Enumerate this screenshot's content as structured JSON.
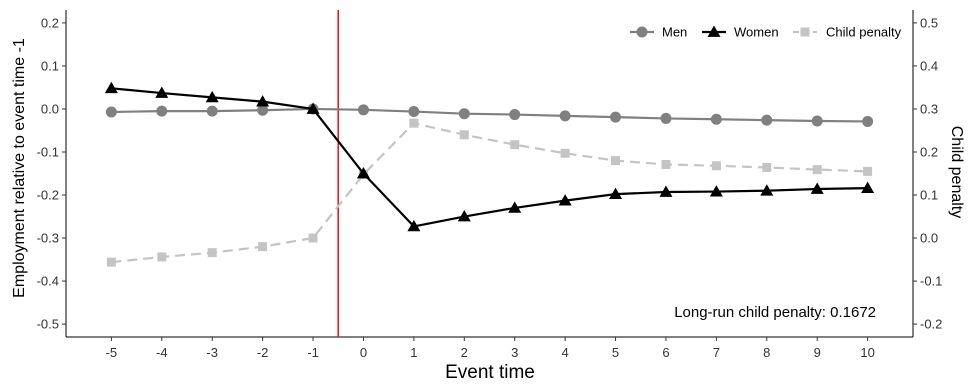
{
  "chart_data": {
    "type": "line",
    "x": [
      -5,
      -4,
      -3,
      -2,
      -1,
      0,
      1,
      2,
      3,
      4,
      5,
      6,
      7,
      8,
      9,
      10
    ],
    "xlabel": "Event time",
    "ylabel": "Employment relative to event time -1",
    "y2label": "Child penalty",
    "ylim": [
      -0.53,
      0.23
    ],
    "y2lim": [
      -0.23,
      0.53
    ],
    "y_ticks": [
      -0.5,
      -0.4,
      -0.3,
      -0.2,
      -0.1,
      0.0,
      0.1,
      0.2
    ],
    "y2_ticks": [
      -0.2,
      -0.1,
      0.0,
      0.1,
      0.2,
      0.3,
      0.4,
      0.5
    ],
    "y_tick_labels": [
      "-0.5",
      "-0.4",
      "-0.3",
      "-0.2",
      "-0.1",
      "0.0",
      "0.1",
      "0.2"
    ],
    "y2_tick_labels": [
      "-0.2",
      "-0.1",
      "0.0",
      "0.1",
      "0.2",
      "0.3",
      "0.4",
      "0.5"
    ],
    "vline_x": -0.5,
    "vline_color": "#e8191c",
    "series": [
      {
        "name": "Men",
        "axis": "left",
        "color": "#808080",
        "marker": "circle",
        "dashed": false,
        "values": [
          -0.007,
          -0.005,
          -0.005,
          -0.003,
          0.0,
          -0.002,
          -0.006,
          -0.011,
          -0.013,
          -0.016,
          -0.019,
          -0.022,
          -0.024,
          -0.026,
          -0.028,
          -0.029
        ]
      },
      {
        "name": "Women",
        "axis": "left",
        "color": "#000000",
        "marker": "triangle",
        "dashed": false,
        "values": [
          0.048,
          0.037,
          0.027,
          0.017,
          0.0,
          -0.15,
          -0.273,
          -0.25,
          -0.23,
          -0.213,
          -0.198,
          -0.193,
          -0.192,
          -0.19,
          -0.186,
          -0.184
        ]
      },
      {
        "name": "Child penalty",
        "axis": "right",
        "color": "#c4c4c4",
        "marker": "square",
        "dashed": true,
        "values": [
          -0.056,
          -0.044,
          -0.034,
          -0.02,
          0.0,
          0.148,
          0.267,
          0.24,
          0.217,
          0.197,
          0.18,
          0.171,
          0.168,
          0.164,
          0.159,
          0.155
        ]
      }
    ],
    "legend_position": "top-right",
    "annotation": "Long-run child penalty: 0.1672",
    "grid": false
  }
}
